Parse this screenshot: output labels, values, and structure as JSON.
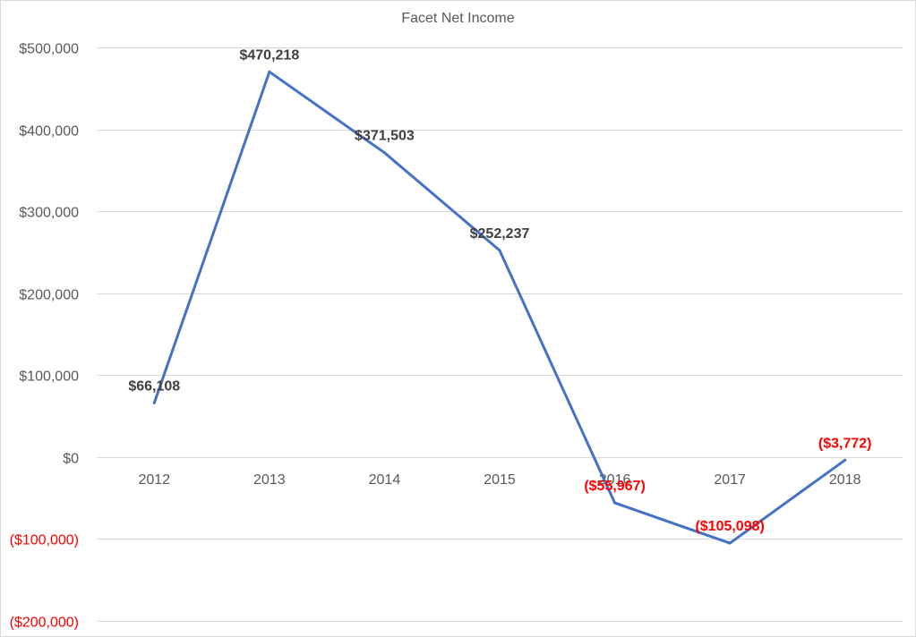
{
  "chart_data": {
    "type": "line",
    "title": "Facet Net Income",
    "xlabel": "",
    "ylabel": "",
    "categories": [
      "2012",
      "2013",
      "2014",
      "2015",
      "2016",
      "2017",
      "2018"
    ],
    "series": [
      {
        "values": [
          66108,
          470218,
          371503,
          252237,
          -55967,
          -105098,
          -3772
        ],
        "data_labels": [
          "$66,108",
          "$470,218",
          "$371,503",
          "$252,237",
          "($55,967)",
          "($105,098)",
          "($3,772)"
        ],
        "color": "#4472c4"
      }
    ],
    "ylim": [
      -200000,
      500000
    ],
    "yticks": [
      500000,
      400000,
      300000,
      200000,
      100000,
      0,
      -100000,
      -200000
    ],
    "ytick_labels": [
      "$500,000",
      "$400,000",
      "$300,000",
      "$200,000",
      "$100,000",
      "$0",
      "($100,000)",
      "($200,000)"
    ],
    "negative_color": "#ff0000",
    "positive_label_color": "#404040",
    "tick_label_color": "#595959",
    "grid": true,
    "grid_color": "#d9d9d9",
    "legend": "none"
  }
}
